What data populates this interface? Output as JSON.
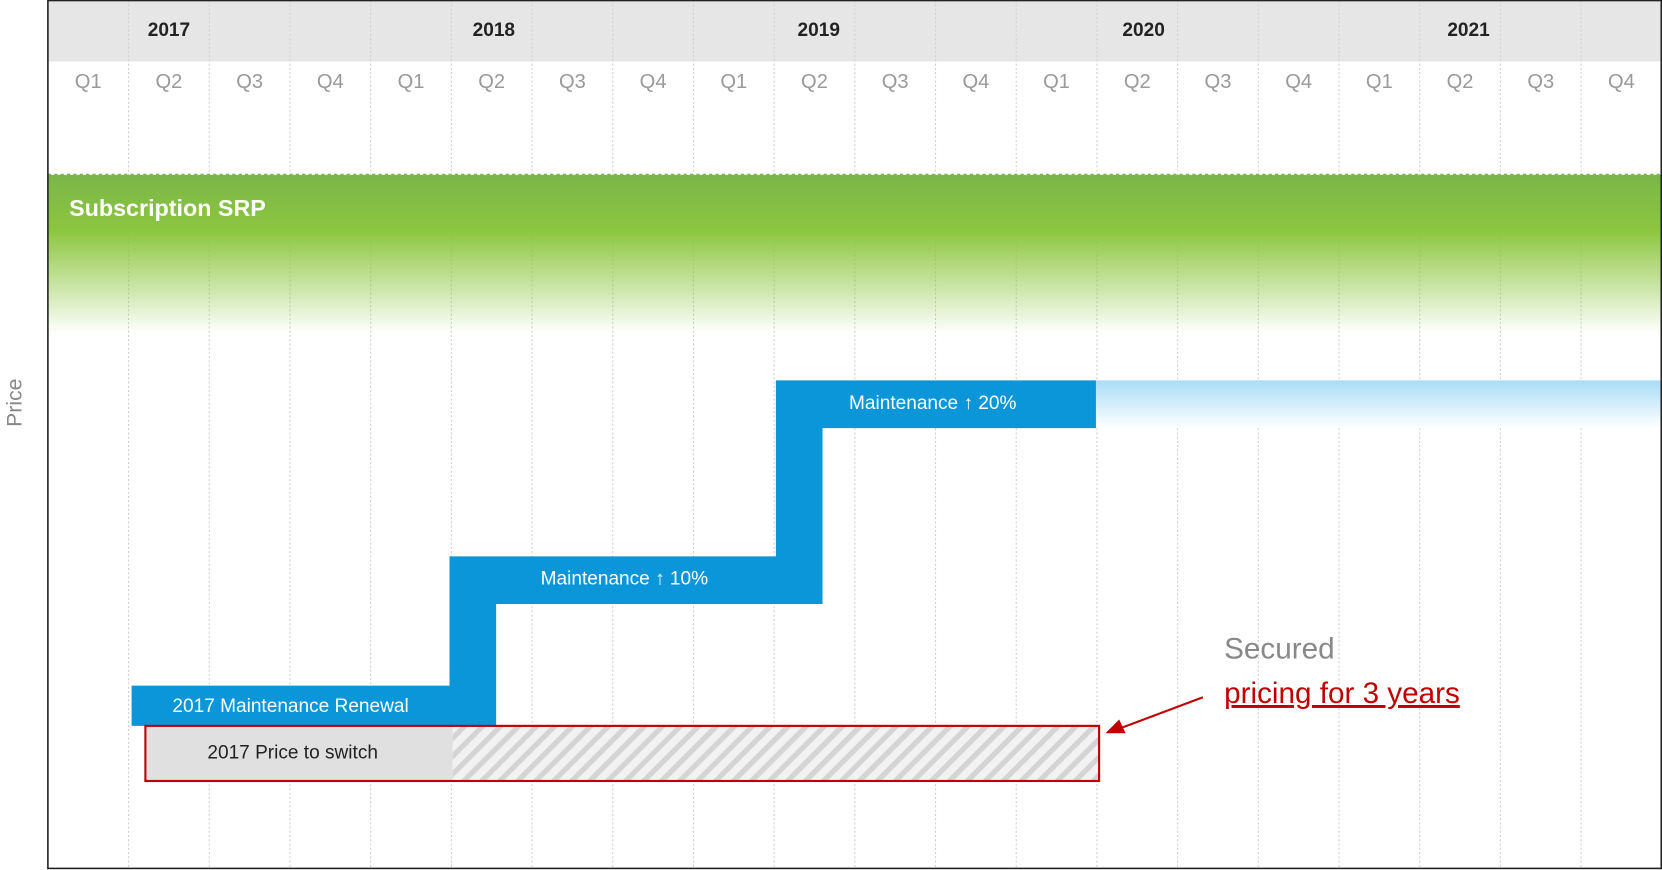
{
  "header": {
    "years": [
      "2017",
      "2018",
      "2019",
      "2020",
      "2021"
    ],
    "quarters": [
      "Q1",
      "Q2",
      "Q3",
      "Q4",
      "Q1",
      "Q2",
      "Q3",
      "Q4",
      "Q1",
      "Q2",
      "Q3",
      "Q4",
      "Q1",
      "Q2",
      "Q3",
      "Q4",
      "Q1",
      "Q2",
      "Q3",
      "Q4"
    ]
  },
  "y_axis_label": "Price",
  "bands": {
    "subscription": "Subscription SRP"
  },
  "steps": [
    "2017 Maintenance Renewal",
    "Maintenance ↑ 10%",
    "Maintenance ↑ 20%"
  ],
  "switch_box": "2017 Price to switch",
  "callout": {
    "line1": "Secured",
    "line2": "pricing for 3 years"
  }
}
